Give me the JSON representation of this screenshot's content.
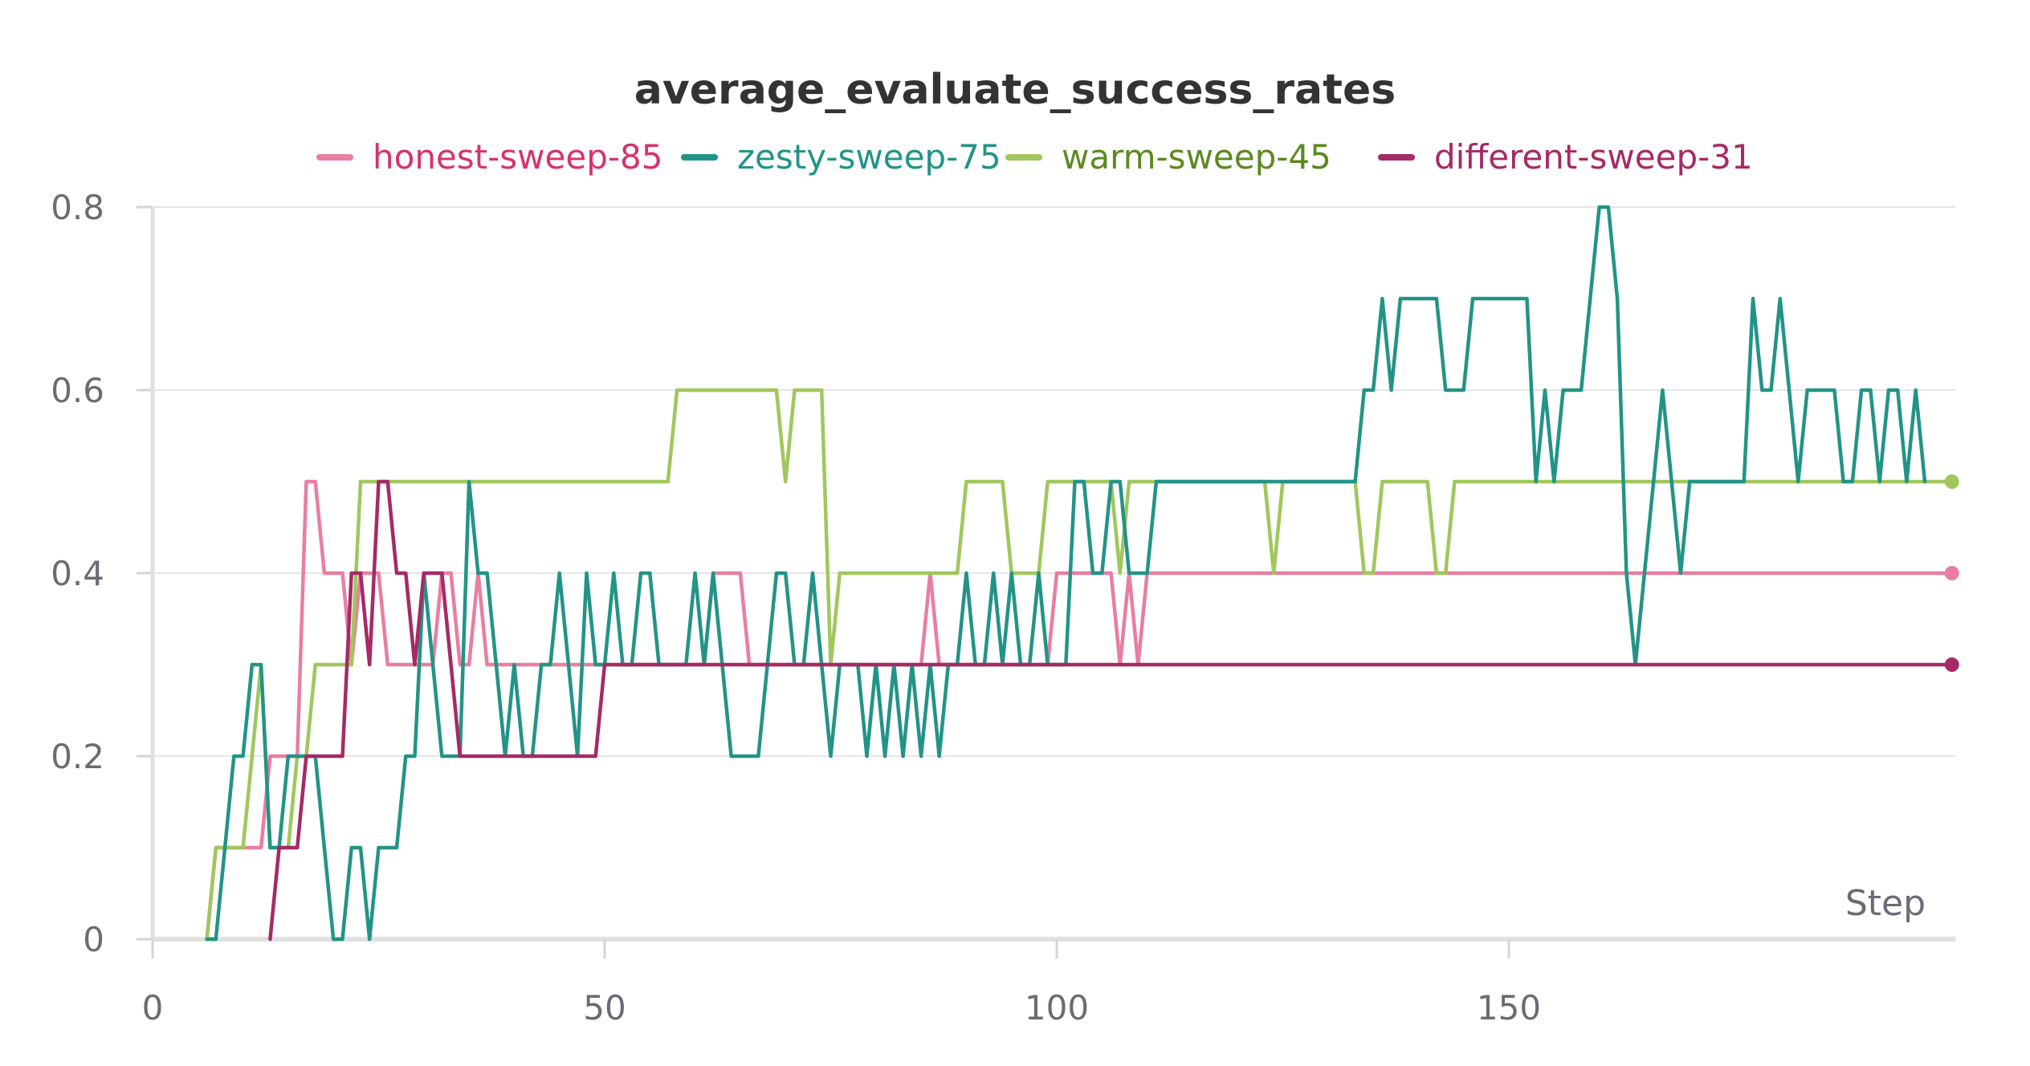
{
  "chart_data": {
    "type": "line",
    "title": "average_evaluate_success_rates",
    "xlabel": "Step",
    "ylabel": "",
    "xlim": [
      0,
      199
    ],
    "ylim": [
      0,
      0.8
    ],
    "x_ticks": [
      0,
      50,
      100,
      150
    ],
    "y_ticks": [
      0,
      0.2,
      0.4,
      0.6,
      0.8
    ],
    "x_tick_labels": [
      "0",
      "50",
      "100",
      "150"
    ],
    "y_tick_labels": [
      "0",
      "0.2",
      "0.4",
      "0.6",
      "0.8"
    ],
    "grid": true,
    "legend_position": "top-center",
    "series": [
      {
        "name": "honest-sweep-85",
        "color": "#e87ea1",
        "label_color": "#d6336c",
        "draw_order": 1,
        "end_marker": true,
        "points": [
          [
            6,
            0
          ],
          [
            7,
            0.1
          ],
          [
            12,
            0.1
          ],
          [
            13,
            0.2
          ],
          [
            16,
            0.2
          ],
          [
            17,
            0.5
          ],
          [
            18,
            0.5
          ],
          [
            19,
            0.4
          ],
          [
            21,
            0.4
          ],
          [
            22,
            0.3
          ],
          [
            23,
            0.4
          ],
          [
            25,
            0.4
          ],
          [
            26,
            0.3
          ],
          [
            31,
            0.3
          ],
          [
            32,
            0.4
          ],
          [
            33,
            0.4
          ],
          [
            34,
            0.3
          ],
          [
            35,
            0.3
          ],
          [
            36,
            0.4
          ],
          [
            37,
            0.3
          ],
          [
            51,
            0.3
          ],
          [
            52,
            0.3
          ],
          [
            61,
            0.3
          ],
          [
            62,
            0.4
          ],
          [
            65,
            0.4
          ],
          [
            66,
            0.3
          ],
          [
            85,
            0.3
          ],
          [
            86,
            0.4
          ],
          [
            87,
            0.3
          ],
          [
            99,
            0.3
          ],
          [
            100,
            0.4
          ],
          [
            106,
            0.4
          ],
          [
            107,
            0.3
          ],
          [
            108,
            0.4
          ],
          [
            109,
            0.3
          ],
          [
            110,
            0.4
          ],
          [
            199,
            0.4
          ]
        ]
      },
      {
        "name": "warm-sweep-45",
        "color": "#a0c75c",
        "label_color": "#5b8a1f",
        "draw_order": 2,
        "end_marker": true,
        "points": [
          [
            6,
            0
          ],
          [
            7,
            0.1
          ],
          [
            10,
            0.1
          ],
          [
            11,
            0.2
          ],
          [
            12,
            0.3
          ],
          [
            13,
            0.1
          ],
          [
            15,
            0.1
          ],
          [
            16,
            0.2
          ],
          [
            17,
            0.2
          ],
          [
            18,
            0.3
          ],
          [
            22,
            0.3
          ],
          [
            23,
            0.5
          ],
          [
            57,
            0.5
          ],
          [
            58,
            0.6
          ],
          [
            69,
            0.6
          ],
          [
            70,
            0.5
          ],
          [
            71,
            0.6
          ],
          [
            74,
            0.6
          ],
          [
            75,
            0.3
          ],
          [
            76,
            0.4
          ],
          [
            89,
            0.4
          ],
          [
            90,
            0.5
          ],
          [
            94,
            0.5
          ],
          [
            95,
            0.4
          ],
          [
            98,
            0.4
          ],
          [
            99,
            0.5
          ],
          [
            106,
            0.5
          ],
          [
            107,
            0.4
          ],
          [
            108,
            0.5
          ],
          [
            123,
            0.5
          ],
          [
            124,
            0.4
          ],
          [
            125,
            0.5
          ],
          [
            133,
            0.5
          ],
          [
            134,
            0.4
          ],
          [
            135,
            0.4
          ],
          [
            136,
            0.5
          ],
          [
            141,
            0.5
          ],
          [
            142,
            0.4
          ],
          [
            143,
            0.4
          ],
          [
            144,
            0.5
          ],
          [
            199,
            0.5
          ]
        ]
      },
      {
        "name": "zesty-sweep-75",
        "color": "#229487",
        "label_color": "#229487",
        "draw_order": 3,
        "end_marker": false,
        "points": [
          [
            6,
            0
          ],
          [
            7,
            0
          ],
          [
            8,
            0.1
          ],
          [
            9,
            0.2
          ],
          [
            10,
            0.2
          ],
          [
            11,
            0.3
          ],
          [
            12,
            0.3
          ],
          [
            13,
            0.1
          ],
          [
            14,
            0.1
          ],
          [
            15,
            0.2
          ],
          [
            16,
            0.2
          ],
          [
            17,
            0.2
          ],
          [
            18,
            0.2
          ],
          [
            19,
            0.1
          ],
          [
            20,
            0
          ],
          [
            21,
            0
          ],
          [
            22,
            0.1
          ],
          [
            23,
            0.1
          ],
          [
            24,
            0
          ],
          [
            25,
            0.1
          ],
          [
            26,
            0.1
          ],
          [
            27,
            0.1
          ],
          [
            28,
            0.2
          ],
          [
            29,
            0.2
          ],
          [
            30,
            0.4
          ],
          [
            31,
            0.3
          ],
          [
            32,
            0.2
          ],
          [
            33,
            0.2
          ],
          [
            34,
            0.2
          ],
          [
            35,
            0.5
          ],
          [
            36,
            0.4
          ],
          [
            37,
            0.4
          ],
          [
            38,
            0.3
          ],
          [
            39,
            0.2
          ],
          [
            40,
            0.3
          ],
          [
            41,
            0.2
          ],
          [
            42,
            0.2
          ],
          [
            43,
            0.3
          ],
          [
            44,
            0.3
          ],
          [
            45,
            0.4
          ],
          [
            46,
            0.3
          ],
          [
            47,
            0.2
          ],
          [
            48,
            0.4
          ],
          [
            49,
            0.3
          ],
          [
            50,
            0.3
          ],
          [
            51,
            0.4
          ],
          [
            52,
            0.3
          ],
          [
            53,
            0.3
          ],
          [
            54,
            0.4
          ],
          [
            55,
            0.4
          ],
          [
            56,
            0.3
          ],
          [
            57,
            0.3
          ],
          [
            58,
            0.3
          ],
          [
            59,
            0.3
          ],
          [
            60,
            0.4
          ],
          [
            61,
            0.3
          ],
          [
            62,
            0.4
          ],
          [
            63,
            0.3
          ],
          [
            64,
            0.2
          ],
          [
            65,
            0.2
          ],
          [
            66,
            0.2
          ],
          [
            67,
            0.2
          ],
          [
            68,
            0.3
          ],
          [
            69,
            0.4
          ],
          [
            70,
            0.4
          ],
          [
            71,
            0.3
          ],
          [
            72,
            0.3
          ],
          [
            73,
            0.4
          ],
          [
            74,
            0.3
          ],
          [
            75,
            0.2
          ],
          [
            76,
            0.3
          ],
          [
            77,
            0.3
          ],
          [
            78,
            0.3
          ],
          [
            79,
            0.2
          ],
          [
            80,
            0.3
          ],
          [
            81,
            0.2
          ],
          [
            82,
            0.3
          ],
          [
            83,
            0.2
          ],
          [
            84,
            0.3
          ],
          [
            85,
            0.2
          ],
          [
            86,
            0.3
          ],
          [
            87,
            0.2
          ],
          [
            88,
            0.3
          ],
          [
            89,
            0.3
          ],
          [
            90,
            0.4
          ],
          [
            91,
            0.3
          ],
          [
            92,
            0.3
          ],
          [
            93,
            0.4
          ],
          [
            94,
            0.3
          ],
          [
            95,
            0.4
          ],
          [
            96,
            0.3
          ],
          [
            97,
            0.3
          ],
          [
            98,
            0.4
          ],
          [
            99,
            0.3
          ],
          [
            100,
            0.3
          ],
          [
            101,
            0.3
          ],
          [
            102,
            0.5
          ],
          [
            103,
            0.5
          ],
          [
            104,
            0.4
          ],
          [
            105,
            0.4
          ],
          [
            106,
            0.5
          ],
          [
            107,
            0.5
          ],
          [
            108,
            0.4
          ],
          [
            109,
            0.4
          ],
          [
            110,
            0.4
          ],
          [
            111,
            0.5
          ],
          [
            133,
            0.5
          ],
          [
            134,
            0.6
          ],
          [
            135,
            0.6
          ],
          [
            136,
            0.7
          ],
          [
            137,
            0.6
          ],
          [
            138,
            0.7
          ],
          [
            142,
            0.7
          ],
          [
            143,
            0.6
          ],
          [
            144,
            0.6
          ],
          [
            145,
            0.6
          ],
          [
            146,
            0.7
          ],
          [
            152,
            0.7
          ],
          [
            153,
            0.5
          ],
          [
            154,
            0.6
          ],
          [
            155,
            0.5
          ],
          [
            156,
            0.6
          ],
          [
            157,
            0.6
          ],
          [
            158,
            0.6
          ],
          [
            159,
            0.7
          ],
          [
            160,
            0.8
          ],
          [
            161,
            0.8
          ],
          [
            162,
            0.7
          ],
          [
            163,
            0.4
          ],
          [
            164,
            0.3
          ],
          [
            165,
            0.4
          ],
          [
            166,
            0.5
          ],
          [
            167,
            0.6
          ],
          [
            168,
            0.5
          ],
          [
            169,
            0.4
          ],
          [
            170,
            0.5
          ],
          [
            176,
            0.5
          ],
          [
            177,
            0.7
          ],
          [
            178,
            0.6
          ],
          [
            179,
            0.6
          ],
          [
            180,
            0.7
          ],
          [
            181,
            0.6
          ],
          [
            182,
            0.5
          ],
          [
            183,
            0.6
          ],
          [
            185,
            0.6
          ],
          [
            186,
            0.6
          ],
          [
            187,
            0.5
          ],
          [
            188,
            0.5
          ],
          [
            189,
            0.6
          ],
          [
            190,
            0.6
          ],
          [
            191,
            0.5
          ],
          [
            192,
            0.6
          ],
          [
            193,
            0.6
          ],
          [
            194,
            0.5
          ],
          [
            195,
            0.6
          ],
          [
            196,
            0.5
          ]
        ]
      },
      {
        "name": "different-sweep-31",
        "color": "#a52a66",
        "label_color": "#a52a66",
        "draw_order": 4,
        "end_marker": true,
        "points": [
          [
            13,
            0
          ],
          [
            14,
            0.1
          ],
          [
            16,
            0.1
          ],
          [
            17,
            0.2
          ],
          [
            21,
            0.2
          ],
          [
            22,
            0.4
          ],
          [
            23,
            0.4
          ],
          [
            24,
            0.3
          ],
          [
            25,
            0.5
          ],
          [
            26,
            0.5
          ],
          [
            27,
            0.4
          ],
          [
            28,
            0.4
          ],
          [
            29,
            0.3
          ],
          [
            30,
            0.4
          ],
          [
            32,
            0.4
          ],
          [
            33,
            0.3
          ],
          [
            34,
            0.2
          ],
          [
            49,
            0.2
          ],
          [
            50,
            0.3
          ],
          [
            199,
            0.3
          ]
        ]
      }
    ]
  }
}
